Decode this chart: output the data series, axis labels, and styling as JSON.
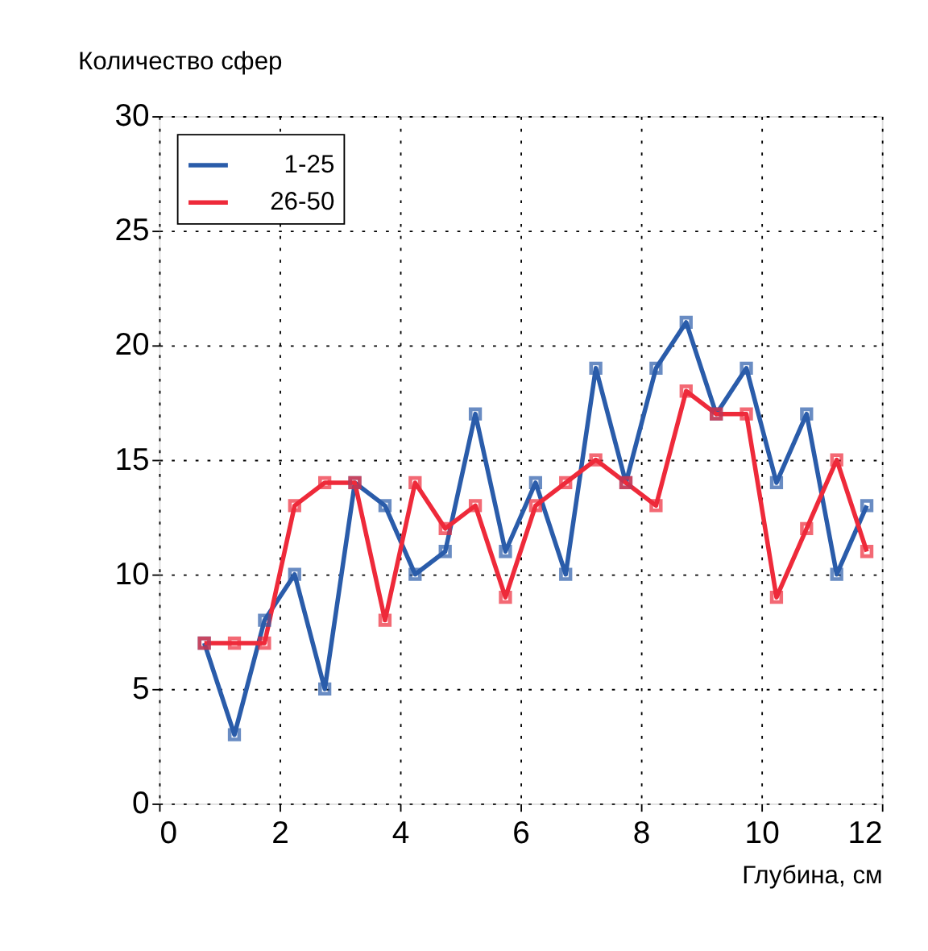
{
  "chart_data": {
    "type": "line",
    "xlabel": "Глубина, см",
    "ylabel": "Количество сфер",
    "x": [
      0.75,
      1.25,
      1.75,
      2.25,
      2.75,
      3.25,
      3.75,
      4.25,
      4.75,
      5.25,
      5.75,
      6.25,
      6.75,
      7.25,
      7.75,
      8.25,
      8.75,
      9.25,
      9.75,
      10.25,
      10.75,
      11.25,
      11.75
    ],
    "series": [
      {
        "name": "1-25",
        "color": "#2a5caa",
        "values": [
          7,
          3,
          8,
          10,
          5,
          14,
          13,
          10,
          11,
          17,
          11,
          14,
          10,
          19,
          14,
          19,
          21,
          17,
          19,
          14,
          17,
          10,
          13
        ]
      },
      {
        "name": "26-50",
        "color": "#ee2a3a",
        "values": [
          7,
          7,
          7,
          13,
          14,
          14,
          8,
          14,
          12,
          13,
          9,
          13,
          14,
          15,
          14,
          13,
          18,
          17,
          17,
          9,
          12,
          15,
          11
        ]
      }
    ],
    "xlim": [
      0,
      12
    ],
    "xticks": [
      0,
      2,
      4,
      6,
      8,
      10,
      12
    ],
    "ylim": [
      0,
      30
    ],
    "yticks": [
      0,
      5,
      10,
      15,
      20,
      25,
      30
    ],
    "grid": true,
    "legend": "top left",
    "marker": "square",
    "line_style": "solid"
  }
}
